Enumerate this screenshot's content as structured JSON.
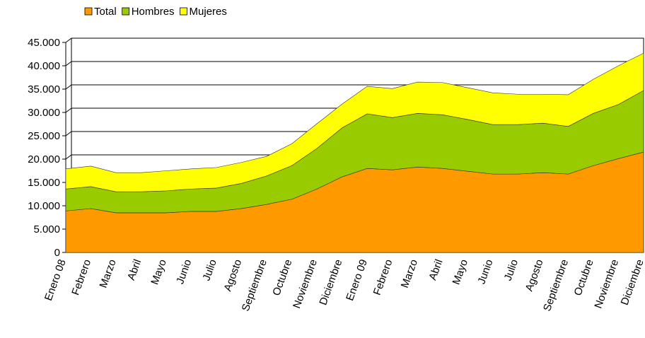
{
  "chart_data": {
    "type": "stacked_area",
    "categories": [
      "Enero 08",
      "Febrero",
      "Marzo",
      "Abril",
      "Mayo",
      "Junio",
      "Julio",
      "Agosto",
      "Septiembre",
      "Octubre",
      "Noviembre",
      "Diciembre",
      "Enero 09",
      "Febrero",
      "Marzo",
      "Abril",
      "Mayo",
      "Junio",
      "Julio",
      "Agosto",
      "Septiembre",
      "Octubre",
      "Noviembre",
      "Diciembre"
    ],
    "series": [
      {
        "name": "Total",
        "color": "#ff9900",
        "values": [
          8900,
          9400,
          8500,
          8500,
          8500,
          8800,
          8800,
          9400,
          10300,
          11400,
          13600,
          16200,
          18000,
          17700,
          18300,
          18000,
          17400,
          16800,
          16800,
          17100,
          16800,
          18600,
          20100,
          21500
        ]
      },
      {
        "name": "Hombres",
        "color": "#99cc00",
        "values": [
          4700,
          4700,
          4500,
          4500,
          4700,
          4800,
          5000,
          5400,
          6100,
          7200,
          8700,
          10500,
          11700,
          11200,
          11500,
          11500,
          11100,
          10600,
          10600,
          10600,
          10200,
          11200,
          11600,
          13200
        ]
      },
      {
        "name": "Mujeres",
        "color": "#ffff00",
        "values": [
          4300,
          4400,
          4100,
          4100,
          4300,
          4300,
          4400,
          4500,
          4200,
          4700,
          5300,
          5100,
          5900,
          6200,
          6700,
          6900,
          6800,
          6800,
          6500,
          6200,
          6800,
          7300,
          8300,
          8000
        ]
      }
    ],
    "ylim": [
      0,
      45000
    ],
    "yticks": [
      0,
      {
        "value": 5000,
        "label": "5.000"
      },
      {
        "value": 10000,
        "label": "10.000"
      },
      {
        "value": 15000,
        "label": "15.000"
      },
      {
        "value": 20000,
        "label": "20.000"
      },
      {
        "value": 25000,
        "label": "25.000"
      },
      {
        "value": 30000,
        "label": "30.000"
      },
      {
        "value": 35000,
        "label": "35.000"
      },
      {
        "value": 40000,
        "label": "40.000"
      },
      {
        "value": 45000,
        "label": "45.000"
      }
    ],
    "grid": true,
    "legend": "top"
  }
}
